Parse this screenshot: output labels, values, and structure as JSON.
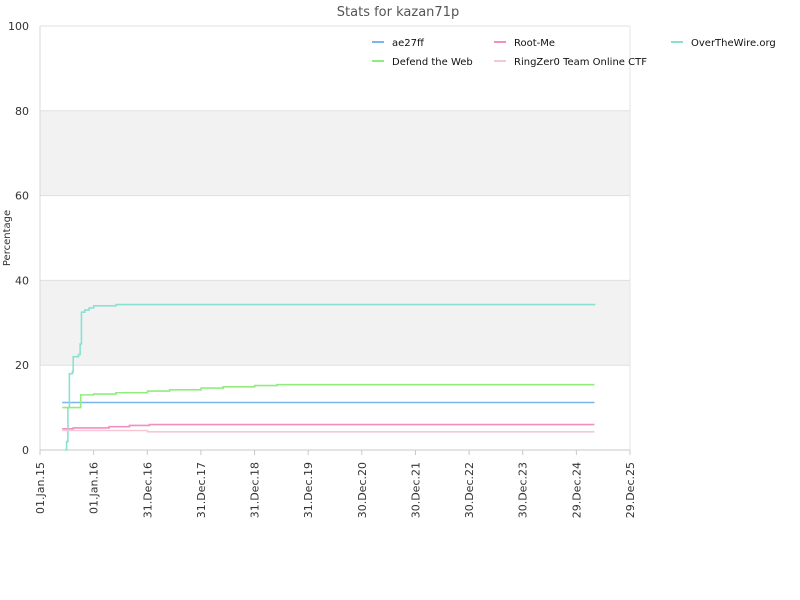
{
  "chart_data": {
    "type": "line",
    "title": "Stats for kazan71p",
    "xlabel": "",
    "ylabel": "Percentage",
    "ylim": [
      0,
      100
    ],
    "yticks": [
      0,
      20,
      40,
      60,
      80,
      100
    ],
    "xlim": [
      "2015-01-01",
      "2025-12-29"
    ],
    "xtick_values": [
      "2015-01-01",
      "2016-01-01",
      "2016-12-31",
      "2017-12-31",
      "2018-12-31",
      "2019-12-31",
      "2020-12-30",
      "2021-12-30",
      "2022-12-30",
      "2023-12-30",
      "2024-12-29",
      "2025-12-29"
    ],
    "xtick_labels": [
      "01.Jan.15",
      "01.Jan.16",
      "31.Dec.16",
      "31.Dec.17",
      "31.Dec.18",
      "31.Dec.19",
      "30.Dec.20",
      "30.Dec.21",
      "30.Dec.22",
      "30.Dec.23",
      "29.Dec.24",
      "29.Dec.25"
    ],
    "grid": true,
    "alternating_bands": true,
    "legend_position": "top-right",
    "series": [
      {
        "name": "ae27ff",
        "color": "#7cb5ec",
        "points": [
          [
            "2015-06-01",
            11.2
          ],
          [
            "2025-05-01",
            11.2
          ]
        ]
      },
      {
        "name": "Root-Me",
        "color": "#f18fc4",
        "points": [
          [
            "2015-06-01",
            5.0
          ],
          [
            "2015-08-15",
            5.0
          ],
          [
            "2015-08-15",
            5.2
          ],
          [
            "2016-04-15",
            5.2
          ],
          [
            "2016-04-15",
            5.5
          ],
          [
            "2016-09-01",
            5.5
          ],
          [
            "2016-09-01",
            5.8
          ],
          [
            "2017-01-15",
            5.8
          ],
          [
            "2017-01-15",
            6.0
          ],
          [
            "2025-05-01",
            6.0
          ]
        ]
      },
      {
        "name": "OverTheWire.org",
        "color": "#8be0d4",
        "points": [
          [
            "2015-06-20",
            0.0
          ],
          [
            "2015-07-01",
            2.0
          ],
          [
            "2015-07-10",
            10.0
          ],
          [
            "2015-07-20",
            18.0
          ],
          [
            "2015-08-10",
            18.5
          ],
          [
            "2015-08-15",
            22.0
          ],
          [
            "2015-09-20",
            22.5
          ],
          [
            "2015-10-01",
            25.0
          ],
          [
            "2015-10-10",
            32.5
          ],
          [
            "2015-11-01",
            33.0
          ],
          [
            "2015-12-01",
            33.5
          ],
          [
            "2016-01-01",
            34.0
          ],
          [
            "2016-06-01",
            34.3
          ],
          [
            "2025-05-01",
            34.5
          ]
        ]
      },
      {
        "name": "Defend the Web",
        "color": "#90ed7d",
        "points": [
          [
            "2015-06-01",
            10.0
          ],
          [
            "2015-10-01",
            10.0
          ],
          [
            "2015-10-05",
            13.0
          ],
          [
            "2016-01-01",
            13.2
          ],
          [
            "2016-06-01",
            13.5
          ],
          [
            "2017-01-01",
            13.9
          ],
          [
            "2017-06-01",
            14.2
          ],
          [
            "2018-01-01",
            14.6
          ],
          [
            "2018-06-01",
            14.9
          ],
          [
            "2019-01-01",
            15.2
          ],
          [
            "2019-06-01",
            15.4
          ],
          [
            "2025-05-01",
            15.4
          ]
        ]
      },
      {
        "name": "RingZer0 Team Online CTF",
        "color": "#f7c7d2",
        "points": [
          [
            "2015-06-01",
            4.6
          ],
          [
            "2017-01-01",
            4.6
          ],
          [
            "2017-01-01",
            4.3
          ],
          [
            "2025-05-01",
            4.3
          ]
        ]
      }
    ],
    "legend_order": [
      "ae27ff",
      "Root-Me",
      "OverTheWire.org",
      "Defend the Web",
      "RingZer0 Team Online CTF"
    ]
  }
}
